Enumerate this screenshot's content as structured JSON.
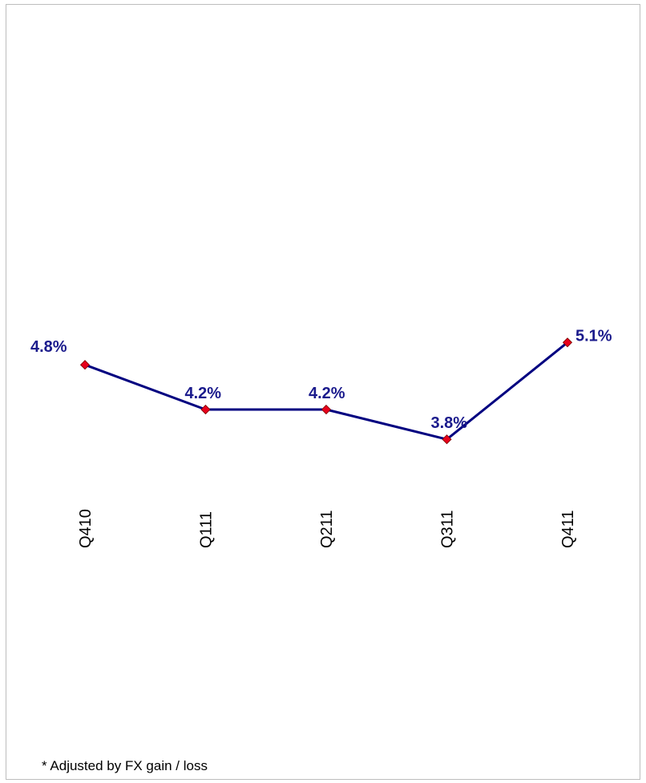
{
  "chart_data": {
    "type": "line",
    "categories": [
      "Q410",
      "Q111",
      "Q211",
      "Q311",
      "Q411"
    ],
    "values": [
      4.8,
      4.2,
      4.2,
      3.8,
      5.1
    ],
    "data_labels": [
      "4.8%",
      "4.2%",
      "4.2%",
      "3.8%",
      "5.1%"
    ],
    "title": "",
    "xlabel": "",
    "ylabel": "",
    "grid": false,
    "colors": {
      "line": "#000080",
      "marker": "#e8001c",
      "label": "#1a1a8c",
      "tick": "#000000"
    }
  },
  "footnote": "*  Adjusted by FX gain / loss"
}
